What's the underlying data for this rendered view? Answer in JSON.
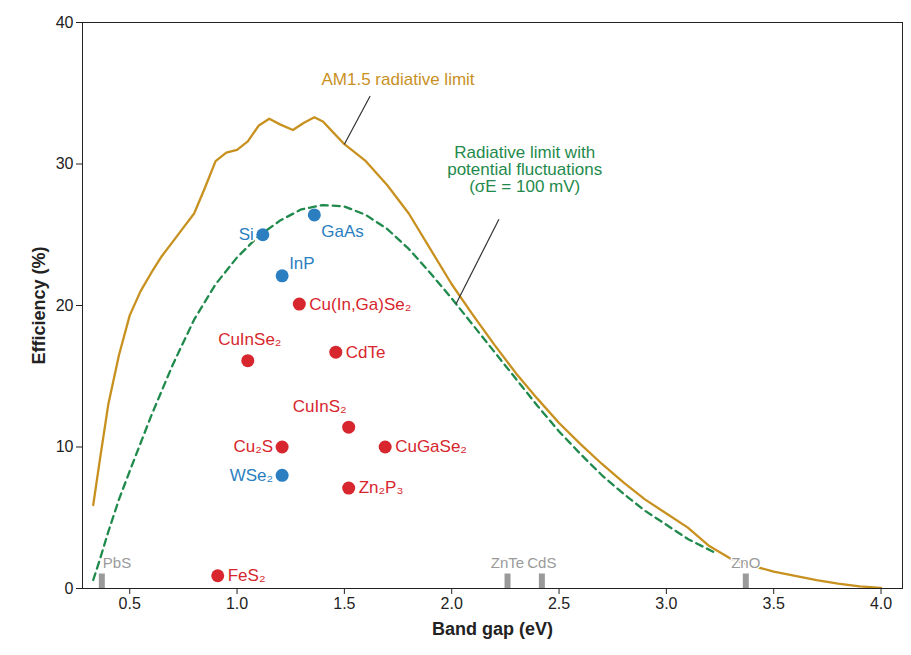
{
  "chart_data": {
    "type": "line",
    "xlabel": "Band gap (eV)",
    "ylabel": "Efficiency (%)",
    "xlim": [
      0.28,
      4.1
    ],
    "ylim": [
      0,
      40
    ],
    "xticks": [
      0.5,
      {
        "value": 1,
        "label": "1.0"
      },
      1.5,
      {
        "value": 2,
        "label": "2.0"
      },
      2.5,
      {
        "value": 3,
        "label": "3.0"
      },
      3.5,
      {
        "value": 4,
        "label": "4.0"
      }
    ],
    "yticks": [
      0,
      10,
      20,
      30,
      40
    ],
    "series": [
      {
        "type": "line",
        "color": "#c8911f",
        "line_style": "solid",
        "x": [
          0.33,
          0.36,
          0.4,
          0.45,
          0.5,
          0.55,
          0.6,
          0.65,
          0.7,
          0.75,
          0.8,
          0.85,
          0.9,
          0.95,
          1.0,
          1.05,
          1.1,
          1.15,
          1.2,
          1.26,
          1.31,
          1.36,
          1.4,
          1.45,
          1.5,
          1.6,
          1.7,
          1.8,
          1.9,
          2.0,
          2.1,
          2.2,
          2.3,
          2.4,
          2.5,
          2.6,
          2.7,
          2.8,
          2.9,
          3.0,
          3.1,
          3.2,
          3.3,
          3.4,
          3.5,
          3.6,
          3.7,
          3.8,
          3.9,
          4.0
        ],
        "values": [
          5.9,
          9,
          13,
          16.5,
          19.3,
          21,
          22.3,
          23.5,
          24.5,
          25.5,
          26.5,
          28.3,
          30.2,
          30.8,
          31.0,
          31.6,
          32.7,
          33.2,
          32.8,
          32.4,
          32.9,
          33.3,
          33.0,
          32.2,
          31.4,
          30.2,
          28.5,
          26.5,
          24,
          21.5,
          19.3,
          17.2,
          15.2,
          13.4,
          11.7,
          10.2,
          8.8,
          7.5,
          6.3,
          5.3,
          4.3,
          3.0,
          2.1,
          1.6,
          1.2,
          0.9,
          0.6,
          0.35,
          0.15,
          0.05
        ]
      },
      {
        "type": "line",
        "color": "#1f8a4c",
        "line_style": "dashed",
        "x": [
          0.33,
          0.36,
          0.4,
          0.45,
          0.5,
          0.6,
          0.7,
          0.8,
          0.9,
          1.0,
          1.1,
          1.2,
          1.3,
          1.4,
          1.5,
          1.6,
          1.7,
          1.8,
          1.9,
          2.0,
          2.1,
          2.2,
          2.3,
          2.4,
          2.5,
          2.6,
          2.7,
          2.8,
          2.9,
          3.0,
          3.1,
          3.23
        ],
        "values": [
          0.6,
          2.0,
          4.0,
          6.3,
          8.3,
          12.2,
          15.8,
          19.0,
          21.5,
          23.4,
          24.9,
          26.0,
          26.8,
          27.1,
          27.0,
          26.4,
          25.4,
          24.0,
          22.3,
          20.5,
          18.6,
          16.7,
          14.8,
          12.9,
          11.1,
          9.5,
          8.0,
          6.7,
          5.5,
          4.5,
          3.5,
          2.5
        ]
      },
      {
        "type": "scatter",
        "marker": "circle",
        "labels": [
          "Si",
          "GaAs",
          "InP",
          "Cu(In,Ga)Se₂",
          "CuInSe₂",
          "CdTe",
          "CuInS₂",
          "Cu₂S",
          "CuGaSe₂",
          "WSe₂",
          "Zn₂P₃",
          "FeS₂"
        ],
        "x": [
          1.12,
          1.36,
          1.21,
          1.29,
          1.05,
          1.46,
          1.52,
          1.21,
          1.69,
          1.21,
          1.52,
          0.91
        ],
        "values": [
          25.0,
          26.4,
          22.1,
          20.1,
          16.1,
          16.7,
          11.4,
          10.0,
          10.0,
          8.0,
          7.1,
          0.9
        ],
        "colors": [
          "#2b7fc1",
          "#2b7fc1",
          "#2b7fc1",
          "#d7262d",
          "#d7262d",
          "#d7262d",
          "#d7262d",
          "#d7262d",
          "#d7262d",
          "#2b7fc1",
          "#d7262d",
          "#d7262d"
        ]
      },
      {
        "type": "tick",
        "marker": "bar",
        "color": "#9a9a9a",
        "labels": [
          "PbS",
          "ZnTe",
          "CdS",
          "ZnO"
        ],
        "x": [
          0.37,
          2.26,
          2.42,
          3.37
        ]
      }
    ],
    "annotations": [
      {
        "text": "AM1.5 radiative limit",
        "color": "#c8911f",
        "x": 1.75,
        "y": 36.0,
        "line_from": [
          1.62,
          34.8
        ],
        "line_to": [
          1.5,
          31.4
        ]
      },
      {
        "text": "Radiative limit with\npotential fluctuations\n(σE = 100 mV)",
        "color": "#1f8a4c",
        "x": 2.34,
        "y": 29.6,
        "line_from": [
          2.22,
          26.1
        ],
        "line_to": [
          2.02,
          20.1
        ]
      }
    ]
  }
}
